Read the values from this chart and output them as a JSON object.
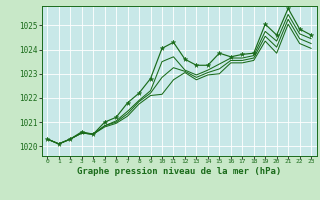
{
  "title": "Graphe pression niveau de la mer (hPa)",
  "background_color": "#c8e8c8",
  "plot_bg_color": "#c8e8e8",
  "line_color": "#1a6b1a",
  "xlim": [
    -0.5,
    23.5
  ],
  "ylim": [
    1019.6,
    1025.8
  ],
  "yticks": [
    1020,
    1021,
    1022,
    1023,
    1024,
    1025
  ],
  "xticks": [
    0,
    1,
    2,
    3,
    4,
    5,
    6,
    7,
    8,
    9,
    10,
    11,
    12,
    13,
    14,
    15,
    16,
    17,
    18,
    19,
    20,
    21,
    22,
    23
  ],
  "xtick_labels": [
    "0",
    "1",
    "2",
    "3",
    "4",
    "5",
    "6",
    "7",
    "8",
    "9",
    "10",
    "11",
    "12",
    "13",
    "14",
    "15",
    "16",
    "17",
    "18",
    "19",
    "20",
    "21",
    "22",
    "23"
  ],
  "series_with_markers": [
    1020.3,
    1020.1,
    1020.3,
    1020.6,
    1020.5,
    1021.0,
    1021.2,
    1021.8,
    1022.2,
    1022.8,
    1024.05,
    1024.3,
    1023.6,
    1023.35,
    1023.35,
    1023.85,
    1023.7,
    1023.8,
    1023.85,
    1025.05,
    1024.6,
    1025.7,
    1024.85,
    1024.6
  ],
  "series_plain": [
    [
      1020.3,
      1020.1,
      1020.3,
      1020.55,
      1020.5,
      1020.85,
      1021.05,
      1021.45,
      1021.9,
      1022.3,
      1023.5,
      1023.7,
      1023.15,
      1022.95,
      1023.15,
      1023.4,
      1023.65,
      1023.65,
      1023.75,
      1024.75,
      1024.35,
      1025.45,
      1024.65,
      1024.45
    ],
    [
      1020.3,
      1020.1,
      1020.3,
      1020.55,
      1020.5,
      1020.85,
      1021.0,
      1021.35,
      1021.85,
      1022.2,
      1022.85,
      1023.25,
      1023.1,
      1022.85,
      1023.05,
      1023.2,
      1023.55,
      1023.55,
      1023.65,
      1024.55,
      1024.1,
      1025.25,
      1024.45,
      1024.25
    ],
    [
      1020.3,
      1020.1,
      1020.3,
      1020.55,
      1020.5,
      1020.8,
      1020.95,
      1021.25,
      1021.75,
      1022.1,
      1022.15,
      1022.75,
      1023.05,
      1022.75,
      1022.95,
      1023.0,
      1023.45,
      1023.45,
      1023.55,
      1024.35,
      1023.85,
      1025.05,
      1024.25,
      1024.05
    ]
  ]
}
